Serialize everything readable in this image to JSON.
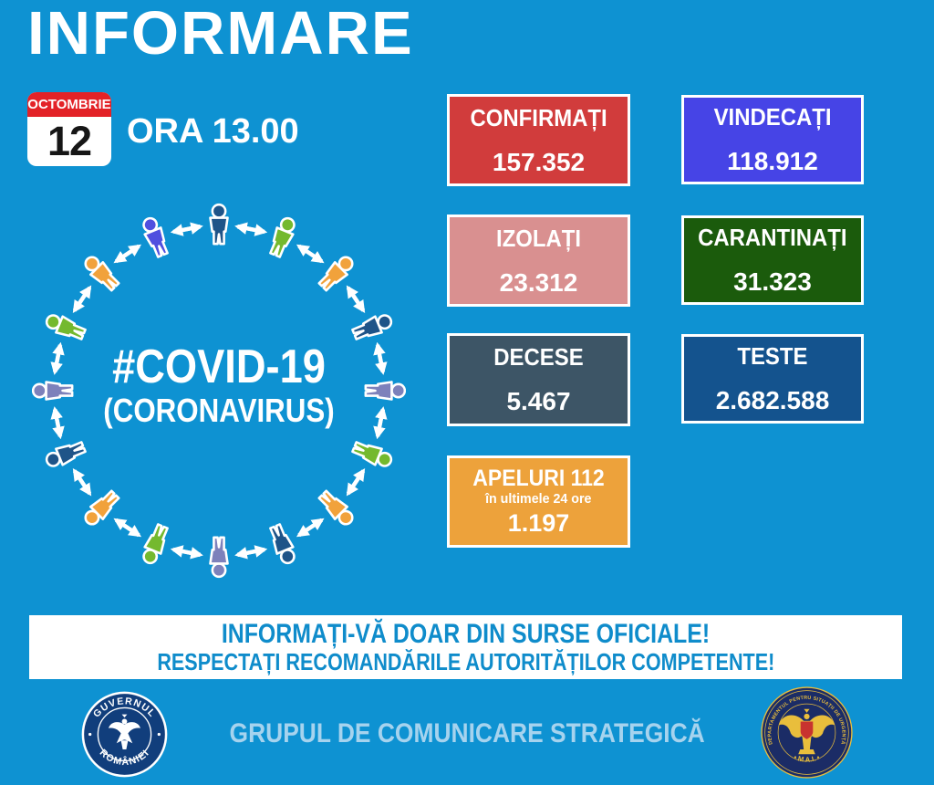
{
  "title": "INFORMARE",
  "calendar": {
    "month": "OCTOMBRIE",
    "day": "12"
  },
  "time_label": "ORA 13.00",
  "center": {
    "hashtag": "#COVID-19",
    "subtitle": "(CORONAVIRUS)"
  },
  "stats": {
    "confirmati": {
      "label": "CONFIRMAȚI",
      "value": "157.352",
      "bg": "#D13C3C"
    },
    "vindecati": {
      "label": "VINDECAȚI",
      "value": "118.912",
      "bg": "#4644E6"
    },
    "izolati": {
      "label": "IZOLAȚI",
      "value": "23.312",
      "bg": "#D99090"
    },
    "carantinati": {
      "label": "CARANTINAȚI",
      "value": "31.323",
      "bg": "#1B5B0C"
    },
    "decese": {
      "label": "DECESE",
      "value": "5.467",
      "bg": "#3D5566"
    },
    "teste": {
      "label": "TESTE",
      "value": "2.682.588",
      "bg": "#14538E"
    },
    "apeluri": {
      "label": "APELURI 112",
      "sublabel": "în ultimele 24 ore",
      "value": "1.197",
      "bg": "#EDA23B"
    }
  },
  "banner": {
    "line1": "INFORMAȚI-VĂ DOAR DIN SURSE OFICIALE!",
    "line2": "RESPECTAȚI RECOMANDĂRILE AUTORITĂȚILOR COMPETENTE!"
  },
  "footer": {
    "text": "GRUPUL DE COMUNICARE STRATEGICĂ",
    "left_seal": {
      "top": "GUVERNUL",
      "bottom": "ROMÂNIEI"
    },
    "right_seal": {
      "ring": "DEPARTAMENTUL PENTRU SITUAȚII DE URGENȚĂ",
      "bottom": "• M.A.I. •"
    }
  },
  "diagram": {
    "person_colors": [
      "#1F5488",
      "#74B92E",
      "#F1A23B",
      "#1F5488",
      "#7D81BB",
      "#74B92E",
      "#F1A23B",
      "#1F5488",
      "#7D81BB",
      "#74B92E",
      "#F1A23B",
      "#1F5488",
      "#7D81BB",
      "#74B92E",
      "#F1A23B",
      "#5050DF"
    ],
    "arrow_color": "#FFFFFF"
  },
  "colors": {
    "background": "#0E92D2",
    "banner_text": "#0F8CCB",
    "footer_text": "#A6D3EE",
    "calendar_red": "#E32227"
  }
}
